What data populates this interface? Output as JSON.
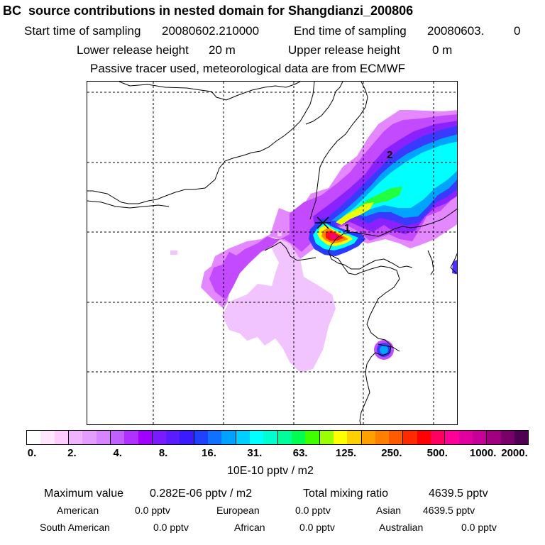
{
  "header": {
    "title": "BC  source contributions in nested domain for Shangdianzi_200806",
    "start_label": "Start time of sampling",
    "start_value": "20080602.210000",
    "end_label": "End time of sampling",
    "end_value": "20080603.",
    "end_suffix": "0",
    "lower_label": "Lower release height",
    "lower_value": "20 m",
    "upper_label": "Upper release height",
    "upper_value": "0 m",
    "tracer_note": "Passive tracer used, meteorological data are from ECMWF"
  },
  "map": {
    "site_markers": [
      "1",
      "2"
    ],
    "release_marker": "site-cross",
    "plume_colors": {
      "lavender": "#f0b8ff",
      "light_magenta": "#e07cff",
      "violet": "#c040ff",
      "purple": "#9020ff",
      "blue": "#2a3cff",
      "sky": "#00a8ff",
      "cyan": "#00ffff",
      "green": "#20ff40",
      "yellow": "#ffff00",
      "orange": "#ff8000",
      "red": "#ff0000",
      "magenta": "#ff007f",
      "dark": "#5a0060"
    }
  },
  "colorbar": {
    "colors": [
      "#ffffff",
      "#ffe6ff",
      "#ffccff",
      "#f0b4ff",
      "#e49cff",
      "#d884ff",
      "#c060ff",
      "#b030ff",
      "#a000ff",
      "#7a1bff",
      "#5a1bff",
      "#3a1bff",
      "#2040ff",
      "#1070ff",
      "#00a0ff",
      "#00d0ff",
      "#00ffff",
      "#00ffd0",
      "#00ff9a",
      "#00ff50",
      "#40ff00",
      "#9aff00",
      "#ffff00",
      "#ffd000",
      "#ffa000",
      "#ff8000",
      "#ff5a00",
      "#ff2a00",
      "#ff0000",
      "#ff0060",
      "#ff0098",
      "#e000a0",
      "#c8009a",
      "#a00080",
      "#780068",
      "#500050"
    ],
    "labels": [
      "0.",
      "2.",
      "4.",
      "8.",
      "16.",
      "31.",
      "63.",
      "125.",
      "250.",
      "500.",
      "1000.",
      "2000."
    ],
    "units": "10E-10 pptv / m2"
  },
  "stats": {
    "max_label": "Maximum value",
    "max_value": "0.282E-06 pptv / m2",
    "total_label": "Total mixing ratio",
    "total_value": "4639.5 pptv",
    "regions": [
      {
        "name": "American",
        "value": "0.0 pptv"
      },
      {
        "name": "European",
        "value": "0.0 pptv"
      },
      {
        "name": "Asian",
        "value": "4639.5 pptv"
      },
      {
        "name": "South American",
        "value": "0.0 pptv"
      },
      {
        "name": "African",
        "value": "0.0 pptv"
      },
      {
        "name": "Australian",
        "value": "0.0 pptv"
      }
    ]
  }
}
